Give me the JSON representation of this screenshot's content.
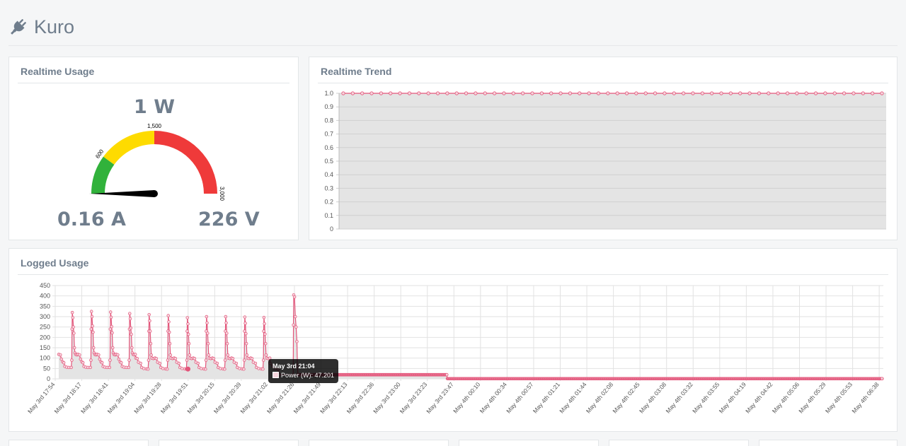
{
  "app": {
    "title": "Kuro",
    "logo_icon": "plug-icon"
  },
  "realtime_usage": {
    "title": "Realtime Usage",
    "power": "1 W",
    "current": "0.16 A",
    "voltage": "226 V",
    "gauge": {
      "min": 0,
      "max": 3000,
      "value": 1,
      "tick_labels": [
        "600",
        "1,500",
        "3,000"
      ],
      "zones": [
        {
          "from": 0,
          "to": 600,
          "color": "#31b23b"
        },
        {
          "from": 600,
          "to": 1500,
          "color": "#fedb00"
        },
        {
          "from": 1500,
          "to": 3000,
          "color": "#ef3a3a"
        }
      ]
    }
  },
  "realtime_trend": {
    "title": "Realtime Trend",
    "chart_data": {
      "type": "line",
      "ylim": [
        0,
        1.0
      ],
      "yticks": [
        "1.0",
        "0.9",
        "0.8",
        "0.7",
        "0.6",
        "0.5",
        "0.4",
        "0.3",
        "0.2",
        "0.1",
        "0"
      ],
      "values": [
        1,
        1,
        1,
        1,
        1,
        1,
        1,
        1,
        1,
        1,
        1,
        1,
        1,
        1,
        1,
        1,
        1,
        1,
        1,
        1,
        1,
        1,
        1,
        1,
        1,
        1,
        1,
        1,
        1,
        1,
        1,
        1,
        1,
        1,
        1,
        1,
        1,
        1,
        1,
        1,
        1,
        1,
        1,
        1,
        1,
        1,
        1,
        1,
        1,
        1,
        1,
        1,
        1,
        1,
        1,
        1,
        1,
        1
      ],
      "color": "#e3557a"
    }
  },
  "logged_usage": {
    "title": "Logged Usage",
    "tooltip": {
      "title": "May 3rd 21:04",
      "label": "Power (W): 47.201"
    },
    "chart_data": {
      "type": "line",
      "ylim": [
        0,
        450
      ],
      "yticks": [
        "450",
        "400",
        "350",
        "300",
        "250",
        "200",
        "150",
        "100",
        "50",
        "0"
      ],
      "categories": [
        "May 3rd 17:54",
        "May 3rd 18:17",
        "May 3rd 18:41",
        "May 3rd 19:04",
        "May 3rd 19:28",
        "May 3rd 19:51",
        "May 3rd 20:15",
        "May 3rd 20:39",
        "May 3rd 21:02",
        "May 3rd 21:26",
        "May 3rd 21:49",
        "May 3rd 22:13",
        "May 3rd 22:36",
        "May 3rd 23:00",
        "May 3rd 23:23",
        "May 3rd 23:47",
        "May 4th 00:10",
        "May 4th 00:34",
        "May 4th 00:57",
        "May 4th 01:21",
        "May 4th 01:44",
        "May 4th 02:08",
        "May 4th 02:45",
        "May 4th 03:08",
        "May 4th 03:32",
        "May 4th 03:55",
        "May 4th 04:19",
        "May 4th 04:42",
        "May 4th 05:06",
        "May 4th 05:29",
        "May 4th 05:53",
        "May 4th 06:38"
      ],
      "series_name": "Power (W)",
      "color": "#e3557a",
      "cycles": [
        {
          "start": 0.0,
          "peak": 320
        },
        {
          "start": 0.72,
          "peak": 325
        },
        {
          "start": 1.44,
          "peak": 322
        },
        {
          "start": 2.16,
          "peak": 315
        },
        {
          "start": 2.9,
          "peak": 310
        },
        {
          "start": 3.62,
          "peak": 305
        },
        {
          "start": 4.34,
          "peak": 295
        },
        {
          "start": 5.06,
          "peak": 300
        },
        {
          "start": 5.78,
          "peak": 300
        },
        {
          "start": 6.5,
          "peak": 298
        },
        {
          "start": 7.22,
          "peak": 296
        }
      ],
      "spike": {
        "at": 8.83,
        "peak": 405
      },
      "base_after_spike": 20,
      "drop_at": 14.6,
      "final": 1
    }
  }
}
